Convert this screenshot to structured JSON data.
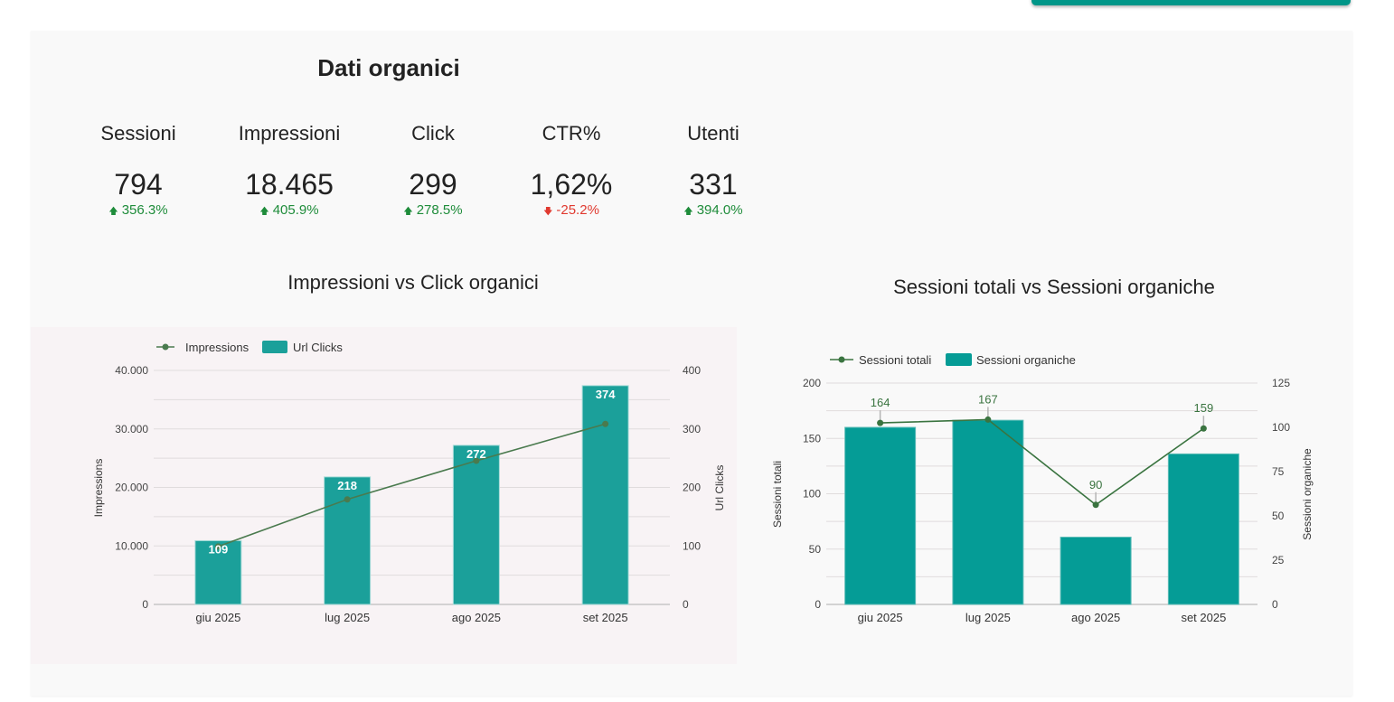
{
  "header": {
    "section_title": "Dati organici"
  },
  "kpis": [
    {
      "label": "Sessioni",
      "value": "794",
      "delta": "356.3%",
      "direction": "up"
    },
    {
      "label": "Impressioni",
      "value": "18.465",
      "delta": "405.9%",
      "direction": "up"
    },
    {
      "label": "Click",
      "value": "299",
      "delta": "278.5%",
      "direction": "up"
    },
    {
      "label": "CTR%",
      "value": "1,62%",
      "delta": "-25.2%",
      "direction": "down"
    },
    {
      "label": "Utenti",
      "value": "331",
      "delta": "394.0%",
      "direction": "up"
    }
  ],
  "colors": {
    "up": "#1e8c3a",
    "down": "#e0392f",
    "bar_left": "#1ba09a",
    "bar_right": "#059c96",
    "line": "#4a7a4e",
    "line_right": "#3a7440",
    "accent": "#009688"
  },
  "chart_data": [
    {
      "type": "bar",
      "title": "Impressioni vs Click organici",
      "categories": [
        "giu 2025",
        "lug 2025",
        "ago 2025",
        "set 2025"
      ],
      "series": [
        {
          "name": "Impressions",
          "kind": "line",
          "axis": "left",
          "values": [
            9900,
            17950,
            24550,
            30850
          ]
        },
        {
          "name": "Url Clicks",
          "kind": "bar",
          "axis": "right",
          "values": [
            109,
            218,
            272,
            374
          ],
          "labels": [
            "109",
            "218",
            "272",
            "374"
          ]
        }
      ],
      "ylabel": "Impressions",
      "y2label": "Url Clicks",
      "ylim": [
        0,
        40000
      ],
      "y2lim": [
        0,
        400
      ],
      "yticks": [
        "0",
        "10.000",
        "20.000",
        "30.000",
        "40.000"
      ],
      "y2ticks": [
        "0",
        "100",
        "200",
        "300",
        "400"
      ],
      "legend": "top-left",
      "grid": true
    },
    {
      "type": "bar",
      "title": "Sessioni totali vs Sessioni organiche",
      "categories": [
        "giu 2025",
        "lug 2025",
        "ago 2025",
        "set 2025"
      ],
      "series": [
        {
          "name": "Sessioni totali",
          "kind": "line",
          "axis": "left",
          "values": [
            164,
            167,
            90,
            159
          ],
          "labels": [
            "164",
            "167",
            "90",
            "159"
          ]
        },
        {
          "name": "Sessioni organiche",
          "kind": "bar",
          "axis": "right",
          "values": [
            100,
            104,
            38,
            85
          ]
        }
      ],
      "ylabel": "Sessioni totali",
      "y2label": "Sessioni organiche",
      "ylim": [
        0,
        200
      ],
      "y2lim": [
        0,
        125
      ],
      "yticks": [
        "0",
        "50",
        "100",
        "150",
        "200"
      ],
      "y2ticks": [
        "0",
        "25",
        "50",
        "75",
        "100",
        "125"
      ],
      "legend": "top-left",
      "grid": true
    }
  ]
}
